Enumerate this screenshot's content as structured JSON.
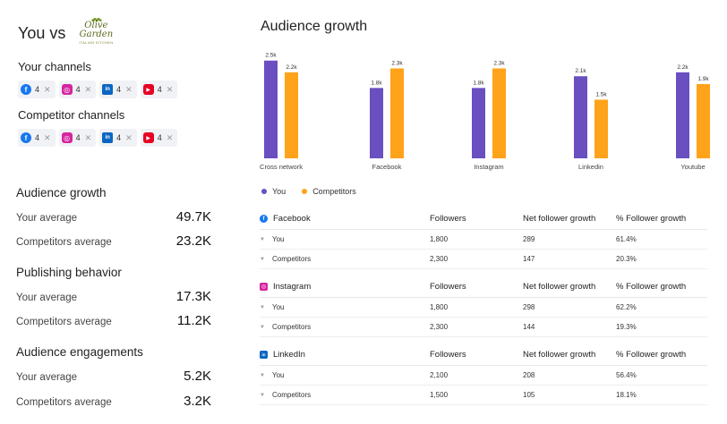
{
  "header": {
    "you_vs": "You vs",
    "competitor_logo": {
      "line1": "Olive",
      "line2": "Garden",
      "tagline": "ITALIAN KITCHEN"
    }
  },
  "your_channels": {
    "label": "Your channels",
    "chips": [
      {
        "network": "facebook",
        "icon": "f",
        "count": "4"
      },
      {
        "network": "instagram",
        "icon": "◎",
        "count": "4"
      },
      {
        "network": "linkedin",
        "icon": "in",
        "count": "4"
      },
      {
        "network": "youtube",
        "icon": "▶",
        "count": "4"
      }
    ]
  },
  "competitor_channels": {
    "label": "Competitor channels",
    "chips": [
      {
        "network": "facebook",
        "icon": "f",
        "count": "4"
      },
      {
        "network": "instagram",
        "icon": "◎",
        "count": "4"
      },
      {
        "network": "linkedin",
        "icon": "in",
        "count": "4"
      },
      {
        "network": "youtube",
        "icon": "▶",
        "count": "4"
      }
    ]
  },
  "chip_remove": "✕",
  "metrics": [
    {
      "title": "Audience growth",
      "your_label": "Your average",
      "your_value": "49.7K",
      "comp_label": "Competitors average",
      "comp_value": "23.2K"
    },
    {
      "title": "Publishing behavior",
      "your_label": "Your average",
      "your_value": "17.3K",
      "comp_label": "Competitors average",
      "comp_value": "11.2K"
    },
    {
      "title": "Audience engagements",
      "your_label": "Your average",
      "your_value": "5.2K",
      "comp_label": "Competitors average",
      "comp_value": "3.2K"
    }
  ],
  "chart_title": "Audience growth",
  "chart_data": {
    "type": "bar",
    "title": "Audience growth",
    "categories": [
      "Cross network",
      "Facebook",
      "Instagram",
      "Linkedin",
      "Youtube"
    ],
    "series": [
      {
        "name": "You",
        "color": "#6a4fc0",
        "values": [
          2.5,
          1.8,
          1.8,
          2.1,
          2.2
        ],
        "labels": [
          "2.5k",
          "1.8k",
          "1.8k",
          "2.1k",
          "2.2k"
        ]
      },
      {
        "name": "Competitors",
        "color": "#ffa31a",
        "values": [
          2.2,
          2.3,
          2.3,
          1.5,
          1.9
        ],
        "labels": [
          "2.2k",
          "2.3k",
          "2.3k",
          "1.5k",
          "1.9k"
        ]
      }
    ],
    "ylim": [
      0,
      2.7
    ],
    "grid": false,
    "legend": "bottom-left"
  },
  "legend": [
    {
      "label": "You",
      "color": "#6a4fc0"
    },
    {
      "label": "Competitors",
      "color": "#ffa31a"
    }
  ],
  "tables": [
    {
      "network": "Facebook",
      "icon": "f",
      "cls": "fb",
      "headers": [
        "Followers",
        "Net follower growth",
        "% Follower growth"
      ],
      "rows": [
        {
          "label": "You",
          "followers": "1,800",
          "net": "289",
          "pct": "61.4%"
        },
        {
          "label": "Competitors",
          "followers": "2,300",
          "net": "147",
          "pct": "20.3%"
        }
      ]
    },
    {
      "network": "Instagram",
      "icon": "◎",
      "cls": "ig",
      "headers": [
        "Followers",
        "Net follower growth",
        "% Follower growth"
      ],
      "rows": [
        {
          "label": "You",
          "followers": "1,800",
          "net": "298",
          "pct": "62.2%"
        },
        {
          "label": "Competitors",
          "followers": "2,300",
          "net": "144",
          "pct": "19.3%"
        }
      ]
    },
    {
      "network": "LinkedIn",
      "icon": "in",
      "cls": "li",
      "headers": [
        "Followers",
        "Net follower growth",
        "% Follower growth"
      ],
      "rows": [
        {
          "label": "You",
          "followers": "2,100",
          "net": "208",
          "pct": "56.4%"
        },
        {
          "label": "Competitors",
          "followers": "1,500",
          "net": "105",
          "pct": "18.1%"
        }
      ]
    }
  ],
  "chevron": "▼"
}
